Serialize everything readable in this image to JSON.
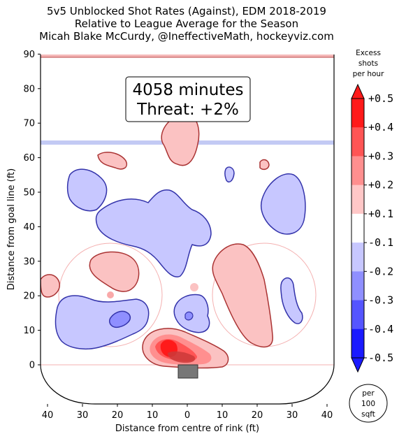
{
  "title": {
    "line1": "5v5 Unblocked Shot Rates (Against), EDM 2018-2019",
    "line2": "Relative to League Average for the Season",
    "line3": "Micah Blake McCurdy, @IneffectiveMath, hockeyviz.com"
  },
  "annotation": {
    "line1": "4058 minutes",
    "line2": "Threat: +2%"
  },
  "colorbar": {
    "title_lines": [
      "Excess",
      "shots",
      "per hour"
    ],
    "levels": [
      "+0.5",
      "+0.4",
      "+0.3",
      "+0.2",
      "+0.1",
      "-0.1",
      "-0.2",
      "-0.3",
      "-0.4",
      "-0.5"
    ],
    "unit_lines": [
      "per",
      "100",
      "sqft"
    ],
    "colors": [
      "#ff1a1a",
      "#ff5555",
      "#ff8f8f",
      "#ffc7c7",
      "#ffffff",
      "#c7c7ff",
      "#8f8fff",
      "#5555ff",
      "#1a1aff"
    ]
  },
  "chart_data": {
    "type": "heatmap",
    "title": "5v5 Unblocked Shot Rates (Against), EDM 2018-2019",
    "subtitle": "Relative to League Average for the Season",
    "xlabel": "Distance from centre of rink (ft)",
    "ylabel": "Distance from goal line (ft)",
    "xlim": [
      -42,
      42
    ],
    "ylim": [
      -11,
      90
    ],
    "x_ticks": [
      -40,
      -30,
      -20,
      -10,
      0,
      10,
      20,
      30,
      40
    ],
    "x_tick_labels": [
      "40",
      "30",
      "20",
      "10",
      "0",
      "10",
      "20",
      "30",
      "40"
    ],
    "y_ticks": [
      0,
      10,
      20,
      30,
      40,
      50,
      60,
      70,
      80,
      90
    ],
    "y_tick_labels": [
      "0",
      "10",
      "20",
      "30",
      "40",
      "50",
      "60",
      "70",
      "80",
      "90"
    ],
    "grid": false,
    "colorbar_range": [
      -0.5,
      0.5
    ],
    "regions": [
      {
        "sign": "+",
        "level": 0.1,
        "x_center": 5,
        "y_center": 65
      },
      {
        "sign": "+",
        "level": 0.1,
        "x_center": -24,
        "y_center": 59
      },
      {
        "sign": "+",
        "level": 0.1,
        "x_center": 22,
        "y_center": 58
      },
      {
        "sign": "-",
        "level": -0.1,
        "x_center": -14,
        "y_center": 43
      },
      {
        "sign": "-",
        "level": -0.1,
        "x_center": -30,
        "y_center": 50
      },
      {
        "sign": "-",
        "level": -0.1,
        "x_center": 28,
        "y_center": 49
      },
      {
        "sign": "-",
        "level": -0.1,
        "x_center": 13,
        "y_center": 54
      },
      {
        "sign": "+",
        "level": 0.1,
        "x_center": -21,
        "y_center": 30
      },
      {
        "sign": "+",
        "level": 0.1,
        "x_center": -40,
        "y_center": 23
      },
      {
        "sign": "+",
        "level": 0.1,
        "x_center": 15,
        "y_center": 28
      },
      {
        "sign": "-",
        "level": -0.1,
        "x_center": -28,
        "y_center": 14
      },
      {
        "sign": "-",
        "level": -0.2,
        "x_center": -20,
        "y_center": 14
      },
      {
        "sign": "-",
        "level": -0.1,
        "x_center": 2,
        "y_center": 15
      },
      {
        "sign": "-",
        "level": -0.1,
        "x_center": 32,
        "y_center": 16
      },
      {
        "sign": "+",
        "level": 0.1,
        "x_center": 23,
        "y_center": 12
      },
      {
        "sign": "+",
        "level": 0.2,
        "x_center": -3,
        "y_center": 5
      },
      {
        "sign": "+",
        "level": 0.5,
        "x_center": -5,
        "y_center": 5
      }
    ]
  }
}
